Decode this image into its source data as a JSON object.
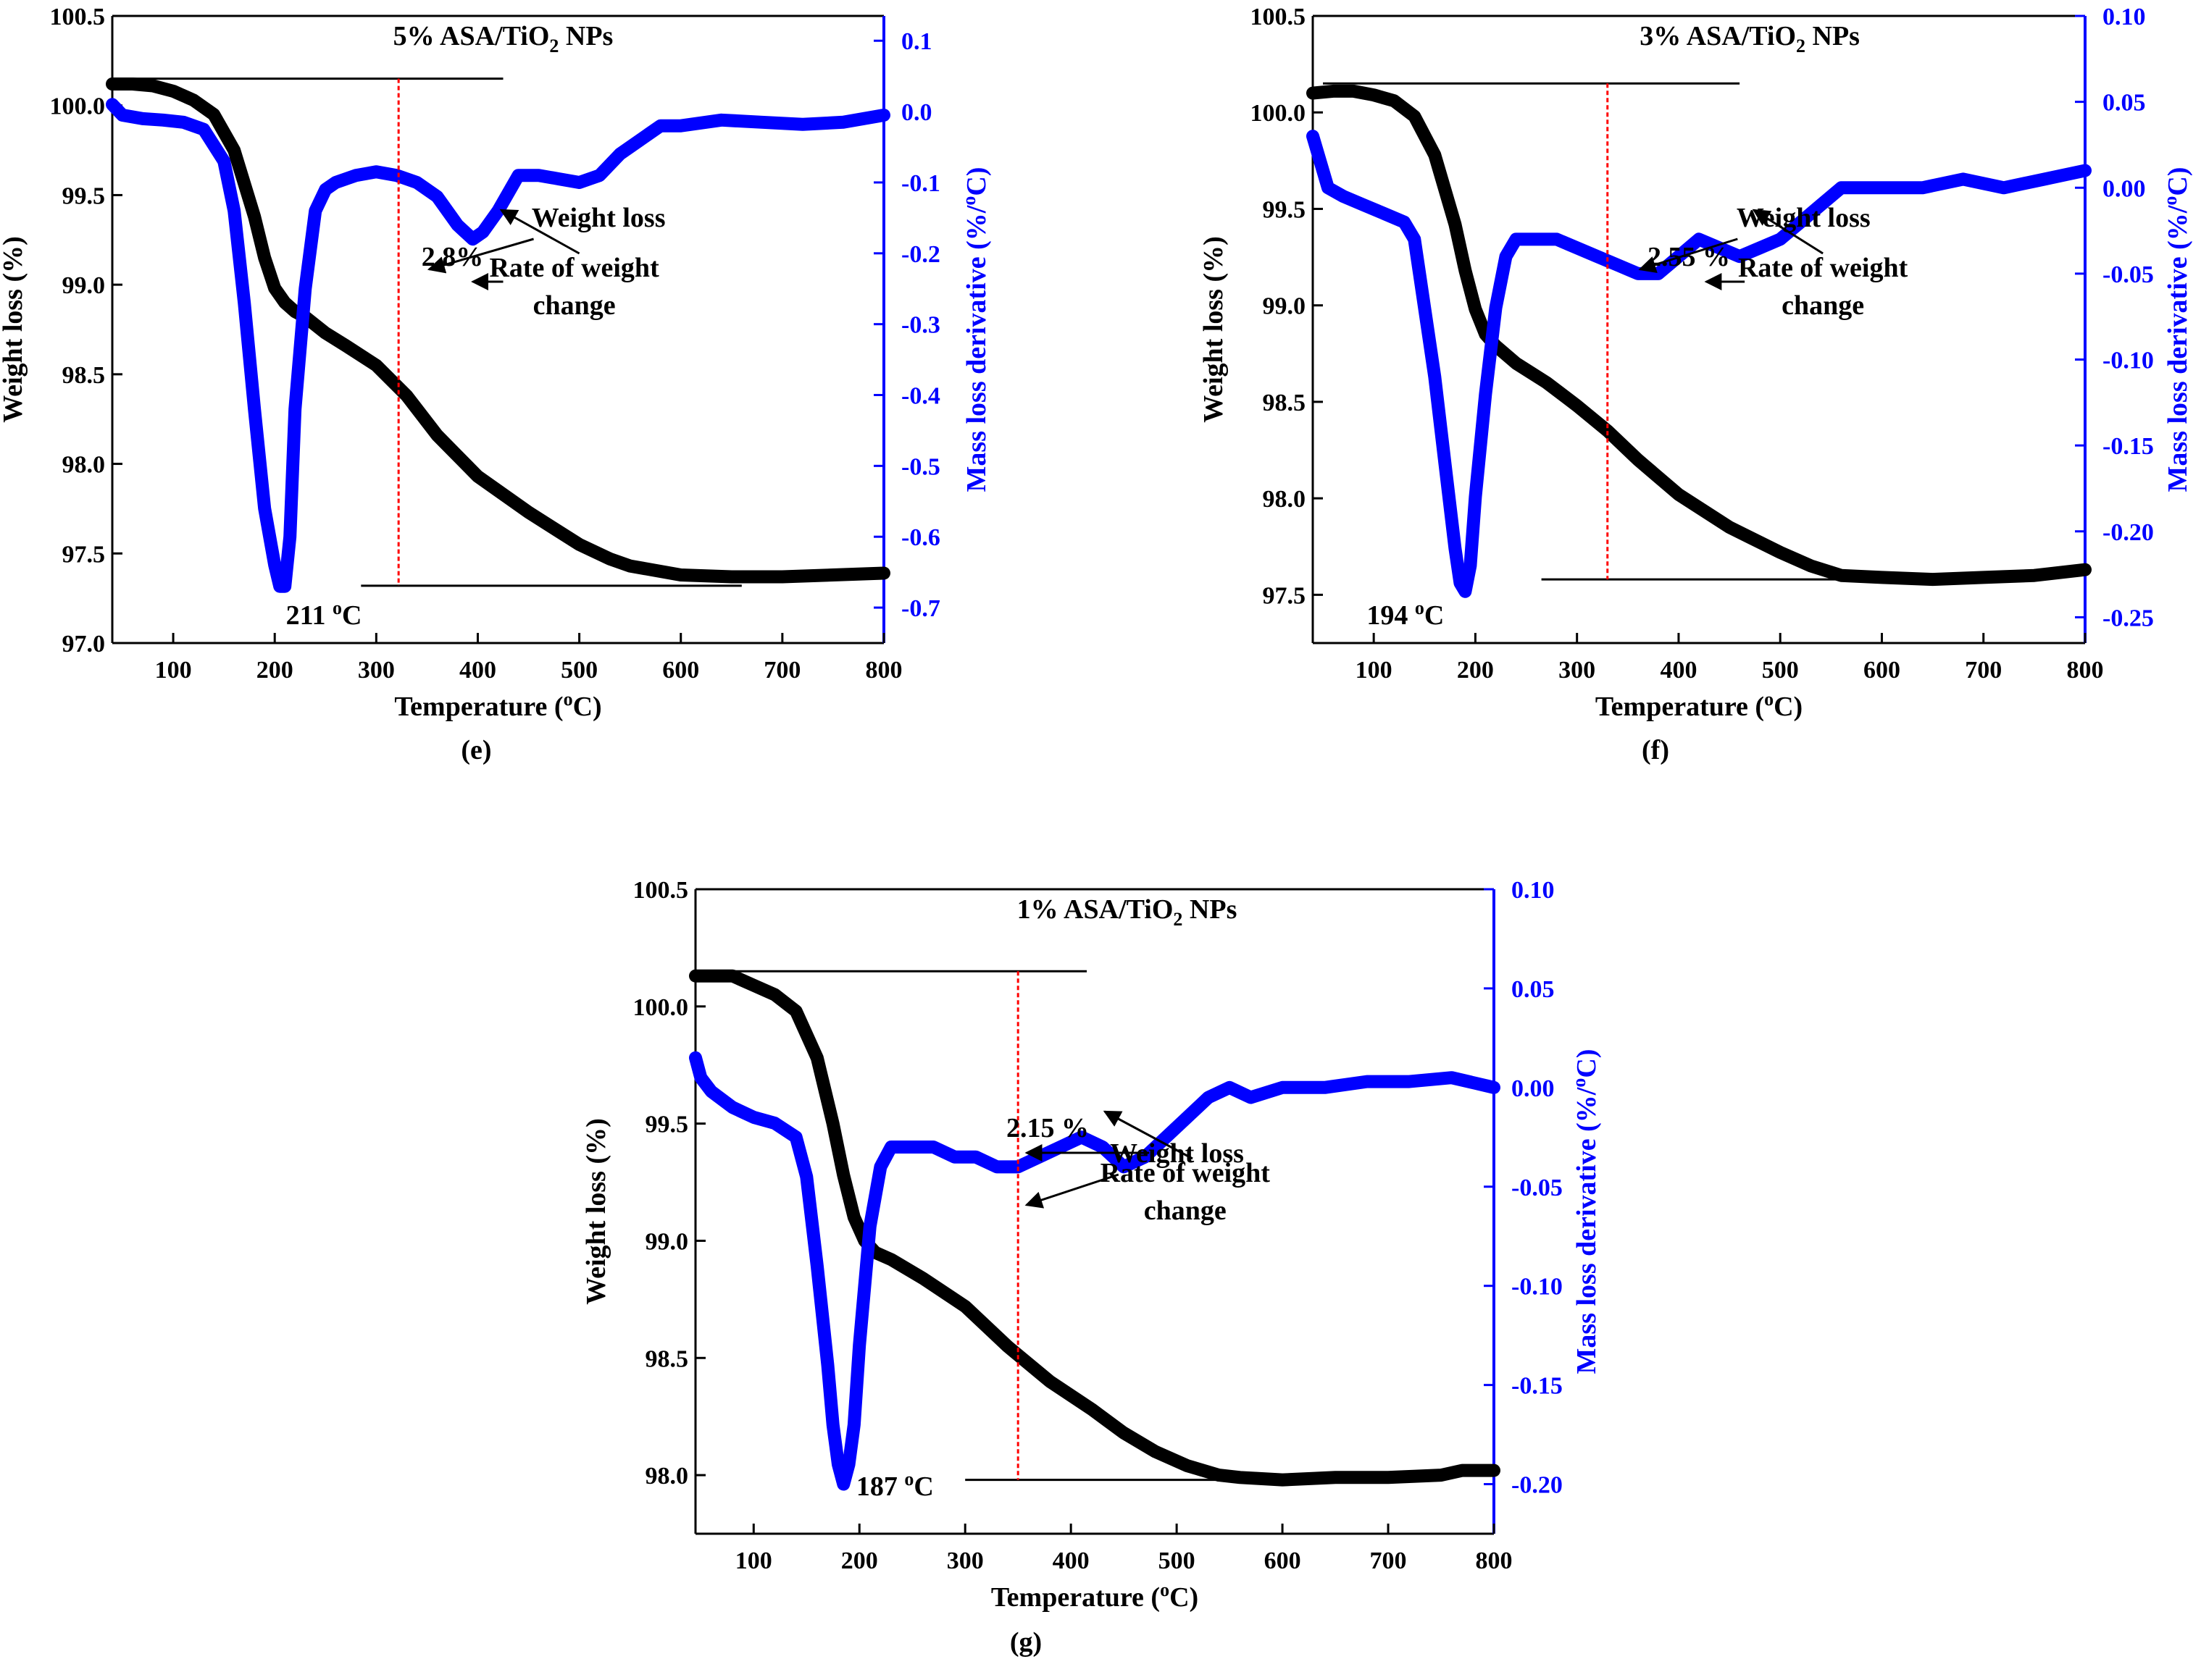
{
  "colors": {
    "weight": "#000000",
    "derivative": "#0000ff",
    "marker": "#ff0000"
  },
  "chart_data": [
    {
      "type": "line",
      "panel_label": "(e)",
      "title": "5% ASA/TiO2 NPs",
      "title_main": "5% ASA/TiO",
      "title_sub": "2",
      "title_tail": " NPs",
      "xlabel": "Temperature (oC)",
      "xlabel_main": "Temperature (",
      "xlabel_sup": "o",
      "xlabel_tail": "C)",
      "ylabel_left": "Weight loss (%)",
      "ylabel_right": "Mass loss derivative (%/oC)",
      "ylabel_right_main": "Mass loss derivative (%/",
      "ylabel_right_sup": "o",
      "ylabel_right_tail": "C)",
      "xlim": [
        40,
        800
      ],
      "ylim_left": [
        97.0,
        100.5
      ],
      "ylim_right": [
        -0.75,
        0.135
      ],
      "x_ticks": [
        100,
        200,
        300,
        400,
        500,
        600,
        700,
        800
      ],
      "y_left_ticks": [
        97.0,
        97.5,
        98.0,
        98.5,
        99.0,
        99.5,
        100.0,
        100.5
      ],
      "y_left_tick_labels": [
        "97.0",
        "97.5",
        "98.0",
        "98.5",
        "99.0",
        "99.5",
        "100.0",
        "100.5"
      ],
      "y_right_ticks": [
        -0.7,
        -0.6,
        -0.5,
        -0.4,
        -0.3,
        -0.2,
        -0.1,
        0.0,
        0.1
      ],
      "y_right_tick_labels": [
        "-0.7",
        "-0.6",
        "-0.5",
        "-0.4",
        "-0.3",
        "-0.2",
        "-0.1",
        "0.0",
        "0.1"
      ],
      "series": [
        {
          "name": "Weight loss",
          "axis": "left",
          "x": [
            40,
            60,
            80,
            100,
            120,
            140,
            160,
            180,
            190,
            200,
            210,
            220,
            230,
            250,
            270,
            300,
            330,
            360,
            400,
            450,
            500,
            530,
            550,
            600,
            650,
            700,
            750,
            800
          ],
          "y": [
            100.12,
            100.12,
            100.11,
            100.08,
            100.03,
            99.95,
            99.75,
            99.38,
            99.15,
            98.98,
            98.9,
            98.85,
            98.82,
            98.73,
            98.66,
            98.55,
            98.38,
            98.16,
            97.93,
            97.73,
            97.55,
            97.47,
            97.43,
            97.38,
            97.37,
            97.37,
            97.38,
            97.39
          ]
        },
        {
          "name": "Rate of weight change",
          "axis": "right",
          "x": [
            40,
            50,
            70,
            90,
            110,
            130,
            150,
            160,
            170,
            180,
            190,
            200,
            205,
            210,
            215,
            220,
            230,
            240,
            250,
            260,
            280,
            300,
            320,
            340,
            360,
            380,
            395,
            405,
            420,
            440,
            460,
            480,
            500,
            520,
            540,
            560,
            580,
            600,
            640,
            680,
            720,
            760,
            800
          ],
          "y": [
            0.01,
            -0.005,
            -0.01,
            -0.012,
            -0.015,
            -0.025,
            -0.07,
            -0.14,
            -0.27,
            -0.42,
            -0.56,
            -0.64,
            -0.67,
            -0.67,
            -0.6,
            -0.42,
            -0.25,
            -0.14,
            -0.11,
            -0.1,
            -0.09,
            -0.085,
            -0.09,
            -0.1,
            -0.12,
            -0.16,
            -0.18,
            -0.17,
            -0.14,
            -0.09,
            -0.09,
            -0.095,
            -0.1,
            -0.09,
            -0.06,
            -0.04,
            -0.02,
            -0.02,
            -0.012,
            -0.015,
            -0.018,
            -0.015,
            -0.005
          ]
        }
      ],
      "horizontal_lines": [
        {
          "axis": "left",
          "y": 100.15,
          "x_start": 50,
          "x_end": 425
        },
        {
          "axis": "left",
          "y": 97.32,
          "x_start": 285,
          "x_end": 660
        }
      ],
      "marker_line_x": 322,
      "annotations": {
        "percent": "2.8%",
        "peak": "211 oC",
        "peak_main": "211 ",
        "peak_sup": "o",
        "peak_tail": "C",
        "weight_label": "Weight loss",
        "rate_label_line1": "Rate of weight",
        "rate_label_line2": "change"
      }
    },
    {
      "type": "line",
      "panel_label": "(f)",
      "title": "3% ASA/TiO2 NPs",
      "title_main": "3% ASA/TiO",
      "title_sub": "2",
      "title_tail": " NPs",
      "xlabel": "Temperature (oC)",
      "xlabel_main": "Temperature (",
      "xlabel_sup": "o",
      "xlabel_tail": "C)",
      "ylabel_left": "Weight loss (%)",
      "ylabel_right": "Mass loss derivative (%/oC)",
      "ylabel_right_main": "Mass loss derivative (%/",
      "ylabel_right_sup": "o",
      "ylabel_right_tail": "C)",
      "xlim": [
        40,
        800
      ],
      "ylim_left": [
        97.25,
        100.5
      ],
      "ylim_right": [
        -0.265,
        0.1
      ],
      "x_ticks": [
        100,
        200,
        300,
        400,
        500,
        600,
        700,
        800
      ],
      "y_left_ticks": [
        97.5,
        98.0,
        98.5,
        99.0,
        99.5,
        100.0,
        100.5
      ],
      "y_left_tick_labels": [
        "97.5",
        "98.0",
        "98.5",
        "99.0",
        "99.5",
        "100.0",
        "100.5"
      ],
      "y_right_ticks": [
        -0.25,
        -0.2,
        -0.15,
        -0.1,
        -0.05,
        0.0,
        0.05,
        0.1
      ],
      "y_right_tick_labels": [
        "-0.25",
        "-0.20",
        "-0.15",
        "-0.10",
        "-0.05",
        "0.00",
        "0.05",
        "0.10"
      ],
      "series": [
        {
          "name": "Weight loss",
          "axis": "left",
          "x": [
            40,
            60,
            80,
            100,
            120,
            140,
            160,
            180,
            190,
            200,
            210,
            220,
            240,
            270,
            300,
            330,
            360,
            400,
            450,
            500,
            530,
            560,
            600,
            650,
            700,
            750,
            800
          ],
          "y": [
            100.1,
            100.11,
            100.11,
            100.09,
            100.06,
            99.98,
            99.78,
            99.42,
            99.18,
            98.98,
            98.85,
            98.79,
            98.7,
            98.6,
            98.48,
            98.35,
            98.2,
            98.02,
            97.85,
            97.72,
            97.65,
            97.6,
            97.59,
            97.58,
            97.59,
            97.6,
            97.63
          ]
        },
        {
          "name": "Rate of weight change",
          "axis": "right",
          "x": [
            40,
            45,
            55,
            70,
            90,
            110,
            130,
            140,
            150,
            160,
            170,
            180,
            185,
            190,
            195,
            200,
            210,
            220,
            230,
            240,
            260,
            280,
            300,
            320,
            340,
            360,
            380,
            400,
            420,
            440,
            460,
            480,
            500,
            520,
            540,
            560,
            580,
            600,
            640,
            680,
            720,
            760,
            800
          ],
          "y": [
            0.03,
            0.02,
            0.0,
            -0.005,
            -0.01,
            -0.015,
            -0.02,
            -0.03,
            -0.07,
            -0.11,
            -0.16,
            -0.21,
            -0.23,
            -0.235,
            -0.22,
            -0.18,
            -0.12,
            -0.07,
            -0.04,
            -0.03,
            -0.03,
            -0.03,
            -0.035,
            -0.04,
            -0.045,
            -0.05,
            -0.05,
            -0.04,
            -0.03,
            -0.035,
            -0.04,
            -0.035,
            -0.03,
            -0.02,
            -0.01,
            0.0,
            0.0,
            0.0,
            0.0,
            0.005,
            0.0,
            0.005,
            0.01
          ]
        }
      ],
      "horizontal_lines": [
        {
          "axis": "left",
          "y": 100.15,
          "x_start": 50,
          "x_end": 460
        },
        {
          "axis": "left",
          "y": 97.58,
          "x_start": 265,
          "x_end": 650
        }
      ],
      "marker_line_x": 330,
      "annotations": {
        "percent": "2.55 %",
        "peak": "194 oC",
        "peak_main": "194 ",
        "peak_sup": "o",
        "peak_tail": "C",
        "weight_label": "Weight loss",
        "rate_label_line1": "Rate of weight",
        "rate_label_line2": "change"
      }
    },
    {
      "type": "line",
      "panel_label": "(g)",
      "title": "1% ASA/TiO2 NPs",
      "title_main": "1% ASA/TiO",
      "title_sub": "2",
      "title_tail": " NPs",
      "xlabel": "Temperature (oC)",
      "xlabel_main": "Temperature (",
      "xlabel_sup": "o",
      "xlabel_tail": "C)",
      "ylabel_left": "Weight loss (%)",
      "ylabel_right": "Mass loss derivative (%/oC)",
      "ylabel_right_main": "Mass loss derivative (%/",
      "ylabel_right_sup": "o",
      "ylabel_right_tail": "C)",
      "xlim": [
        45,
        800
      ],
      "ylim_left": [
        97.75,
        100.5
      ],
      "ylim_right": [
        -0.225,
        0.1
      ],
      "x_ticks": [
        100,
        200,
        300,
        400,
        500,
        600,
        700,
        800
      ],
      "y_left_ticks": [
        98.0,
        98.5,
        99.0,
        99.5,
        100.0,
        100.5
      ],
      "y_left_tick_labels": [
        "98.0",
        "98.5",
        "99.0",
        "99.5",
        "100.0",
        "100.5"
      ],
      "y_right_ticks": [
        -0.2,
        -0.15,
        -0.1,
        -0.05,
        0.0,
        0.05,
        0.1
      ],
      "y_right_tick_labels": [
        "-0.20",
        "-0.15",
        "-0.10",
        "-0.05",
        "0.00",
        "0.05",
        "0.10"
      ],
      "series": [
        {
          "name": "Weight loss",
          "axis": "left",
          "x": [
            45,
            60,
            80,
            100,
            120,
            140,
            160,
            175,
            185,
            195,
            205,
            215,
            230,
            260,
            300,
            340,
            380,
            420,
            450,
            480,
            510,
            540,
            560,
            600,
            650,
            700,
            750,
            770,
            800
          ],
          "y": [
            100.13,
            100.13,
            100.13,
            100.09,
            100.05,
            99.98,
            99.78,
            99.5,
            99.28,
            99.1,
            99.0,
            98.95,
            98.92,
            98.84,
            98.72,
            98.55,
            98.4,
            98.28,
            98.18,
            98.1,
            98.04,
            98.0,
            97.99,
            97.98,
            97.99,
            97.99,
            98.0,
            98.02,
            98.02
          ]
        },
        {
          "name": "Rate of weight change",
          "axis": "right",
          "x": [
            45,
            50,
            60,
            80,
            100,
            120,
            140,
            150,
            160,
            170,
            175,
            180,
            185,
            190,
            195,
            200,
            210,
            220,
            230,
            250,
            270,
            290,
            310,
            330,
            350,
            370,
            390,
            410,
            430,
            450,
            470,
            490,
            510,
            530,
            550,
            570,
            600,
            640,
            680,
            720,
            760,
            800
          ],
          "y": [
            0.015,
            0.005,
            -0.002,
            -0.01,
            -0.015,
            -0.018,
            -0.025,
            -0.045,
            -0.09,
            -0.14,
            -0.17,
            -0.19,
            -0.2,
            -0.19,
            -0.17,
            -0.13,
            -0.07,
            -0.04,
            -0.03,
            -0.03,
            -0.03,
            -0.035,
            -0.035,
            -0.04,
            -0.04,
            -0.035,
            -0.03,
            -0.025,
            -0.03,
            -0.04,
            -0.035,
            -0.025,
            -0.015,
            -0.005,
            0.0,
            -0.005,
            0.0,
            0.0,
            0.003,
            0.003,
            0.005,
            0.0
          ]
        }
      ],
      "horizontal_lines": [
        {
          "axis": "left",
          "y": 100.15,
          "x_start": 50,
          "x_end": 415
        },
        {
          "axis": "left",
          "y": 97.98,
          "x_start": 300,
          "x_end": 620
        }
      ],
      "marker_line_x": 350,
      "annotations": {
        "percent": "2.15 %",
        "peak": "187 oC",
        "peak_main": "187 ",
        "peak_sup": "o",
        "peak_tail": "C",
        "weight_label": "Weight loss",
        "rate_label_line1": "Rate of weight",
        "rate_label_line2": "change"
      }
    }
  ]
}
